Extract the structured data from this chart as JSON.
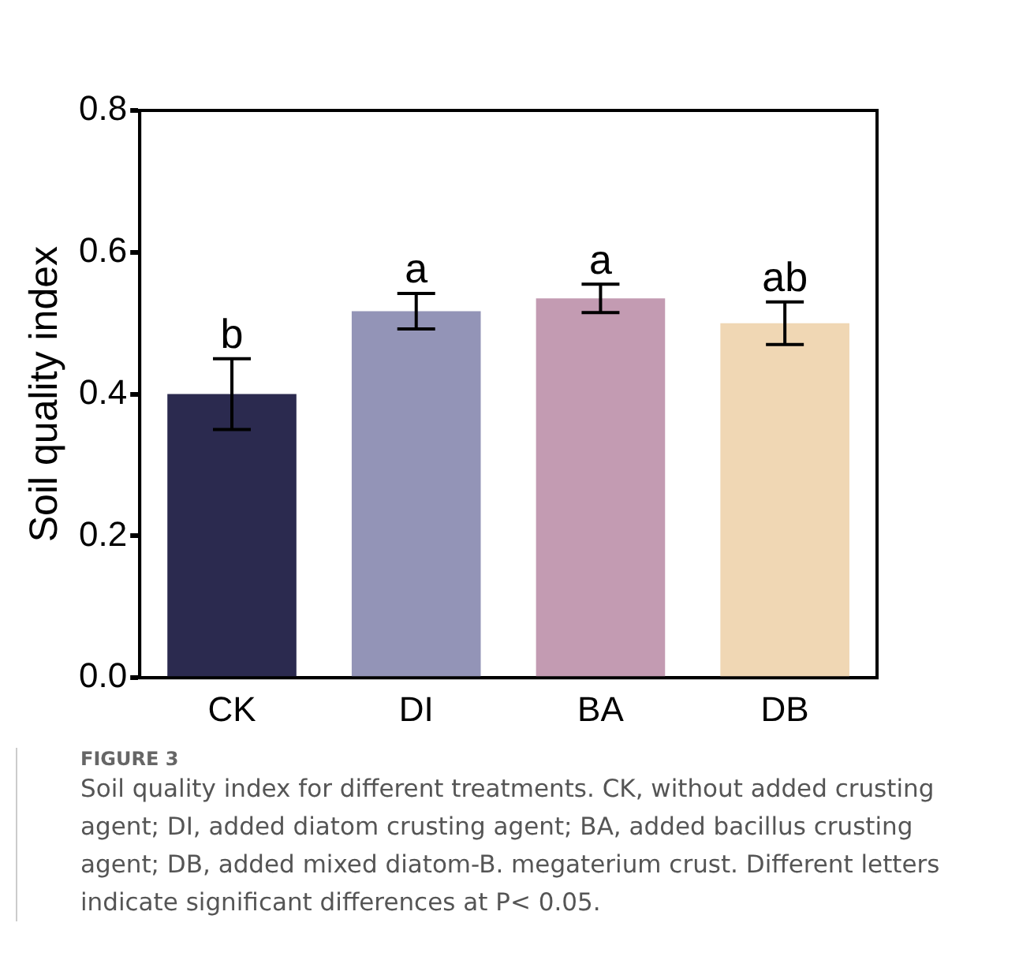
{
  "chart_data": {
    "type": "bar",
    "ylabel": "Soil quality index",
    "categories": [
      "CK",
      "DI",
      "BA",
      "DB"
    ],
    "values": [
      0.4,
      0.517,
      0.535,
      0.5
    ],
    "errors": [
      0.05,
      0.025,
      0.02,
      0.03
    ],
    "colors": [
      "#2b2a4f",
      "#9394b7",
      "#c39bb2",
      "#f0d7b4"
    ],
    "ylim": [
      0,
      0.8
    ],
    "yticks": [
      {
        "value": 0,
        "label": "0.0"
      },
      {
        "value": 0.2,
        "label": "0.2"
      },
      {
        "value": 0.4,
        "label": "0.4"
      },
      {
        "value": 0.6,
        "label": "0.6"
      },
      {
        "value": 0.8,
        "label": "0.8"
      }
    ],
    "grid": false,
    "legend": false,
    "annotations": [
      {
        "text": "b",
        "x": "CK",
        "y": 0.45
      },
      {
        "text": "a",
        "x": "DI",
        "y": 0.542
      },
      {
        "text": "a",
        "x": "BA",
        "y": 0.555
      },
      {
        "text": "ab",
        "x": "DB",
        "y": 0.53
      },
      "FIGURE 3",
      "Soil quality index for different treatments. CK, without added crusting agent; DI, added diatom crusting agent; BA, added bacillus crusting agent; DB, added mixed diatom-B. megaterium crust. Different letters indicate significant differences at P< 0.05."
    ]
  }
}
